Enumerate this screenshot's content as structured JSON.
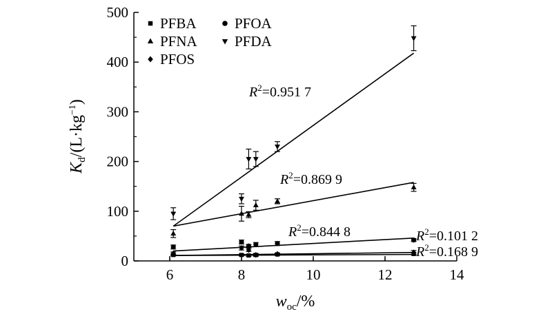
{
  "chart_data": {
    "type": "scatter",
    "title": "",
    "xlabel": {
      "main": "w",
      "sub": "oc",
      "rest": "/%"
    },
    "ylabel": {
      "main": "K",
      "sub": "d",
      "rest": "/(L·kg",
      "sup": "−1",
      "tail": ")"
    },
    "xlim": [
      5,
      14
    ],
    "ylim": [
      0,
      500
    ],
    "xticks": [
      6,
      8,
      10,
      12,
      14
    ],
    "yticks": [
      0,
      100,
      200,
      300,
      400,
      500
    ],
    "grid": false,
    "legend_position": "top-left",
    "series": [
      {
        "name": "PFBA",
        "marker": "square",
        "points": [
          {
            "x": 6.1,
            "y": 12,
            "err": 2
          },
          {
            "x": 8.0,
            "y": 12,
            "err": 2
          },
          {
            "x": 8.2,
            "y": 11,
            "err": 2
          },
          {
            "x": 8.4,
            "y": 12,
            "err": 2
          },
          {
            "x": 9.0,
            "y": 13,
            "err": 2
          },
          {
            "x": 12.8,
            "y": 14,
            "err": 2
          }
        ],
        "fit": {
          "x0": 6.1,
          "y0": 11,
          "x1": 12.8,
          "y1": 13
        }
      },
      {
        "name": "PFOA",
        "marker": "circle",
        "points": [
          {
            "x": 6.1,
            "y": 28,
            "err": 4
          },
          {
            "x": 8.0,
            "y": 38,
            "err": 4
          },
          {
            "x": 8.2,
            "y": 30,
            "err": 3
          },
          {
            "x": 8.4,
            "y": 33,
            "err": 4
          },
          {
            "x": 9.0,
            "y": 35,
            "err": 4
          },
          {
            "x": 12.8,
            "y": 42,
            "err": 3
          }
        ],
        "fit": {
          "x0": 6.1,
          "y0": 20,
          "x1": 12.8,
          "y1": 46
        }
      },
      {
        "name": "PFNA",
        "marker": "triangle-up",
        "points": [
          {
            "x": 6.1,
            "y": 55,
            "err": 8
          },
          {
            "x": 8.0,
            "y": 95,
            "err": 15
          },
          {
            "x": 8.2,
            "y": 93,
            "err": 6
          },
          {
            "x": 8.4,
            "y": 112,
            "err": 10
          },
          {
            "x": 9.0,
            "y": 120,
            "err": 5
          },
          {
            "x": 12.8,
            "y": 148,
            "err": 8
          }
        ],
        "fit": {
          "x0": 6.1,
          "y0": 70,
          "x1": 12.8,
          "y1": 158
        }
      },
      {
        "name": "PFDA",
        "marker": "triangle-down",
        "points": [
          {
            "x": 6.1,
            "y": 95,
            "err": 12
          },
          {
            "x": 8.0,
            "y": 125,
            "err": 10
          },
          {
            "x": 8.2,
            "y": 205,
            "err": 20
          },
          {
            "x": 8.4,
            "y": 205,
            "err": 15
          },
          {
            "x": 9.0,
            "y": 230,
            "err": 10
          },
          {
            "x": 12.8,
            "y": 448,
            "err": 25
          }
        ],
        "fit": {
          "x0": 6.1,
          "y0": 70,
          "x1": 12.8,
          "y1": 418
        }
      },
      {
        "name": "PFOS",
        "marker": "diamond",
        "points": [
          {
            "x": 6.1,
            "y": 15,
            "err": 3
          },
          {
            "x": 8.0,
            "y": 26,
            "err": 4
          },
          {
            "x": 8.2,
            "y": 22,
            "err": 3
          },
          {
            "x": 8.4,
            "y": 12,
            "err": 3
          },
          {
            "x": 9.0,
            "y": 14,
            "err": 2
          },
          {
            "x": 12.8,
            "y": 17,
            "err": 4
          }
        ],
        "fit": {
          "x0": 6.1,
          "y0": 11,
          "x1": 12.8,
          "y1": 17
        }
      }
    ],
    "annotations": [
      {
        "text": "R²=0.951 7",
        "pre": "R",
        "sup": "2",
        "value": "=0.951 7",
        "x": 8.5,
        "y": 330
      },
      {
        "text": "R²=0.869 9",
        "pre": "R",
        "sup": "2",
        "value": "=0.869 9",
        "x": 9.0,
        "y": 160
      },
      {
        "text": "R²=0.844 8",
        "pre": "R",
        "sup": "2",
        "value": "=0.844 8",
        "x": 9.5,
        "y": 55
      },
      {
        "text": "R²=0.101 2",
        "pre": "R",
        "sup": "2",
        "value": "=0.101 2",
        "x": 12.8,
        "y": 42
      },
      {
        "text": "R²=0.168 9",
        "pre": "R",
        "sup": "2",
        "value": "=0.168 9",
        "x": 12.8,
        "y": 10
      }
    ]
  }
}
